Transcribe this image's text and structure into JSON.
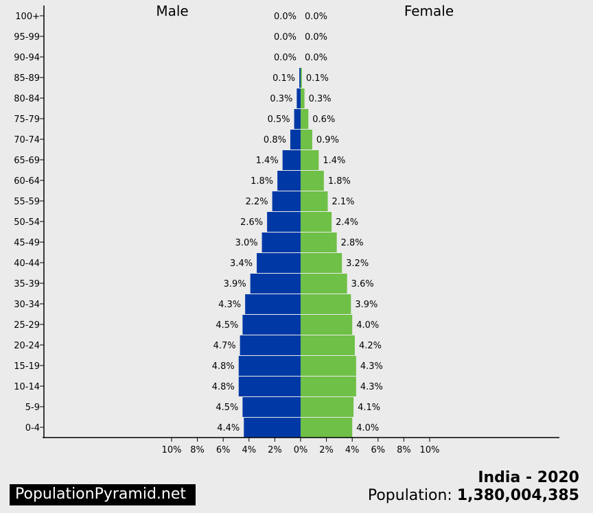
{
  "chart_data": {
    "type": "bar",
    "orientation": "horizontal-butterfly",
    "title_left": "Male",
    "title_right": "Female",
    "categories": [
      "100+",
      "95-99",
      "90-94",
      "85-89",
      "80-84",
      "75-79",
      "70-74",
      "65-69",
      "60-64",
      "55-59",
      "50-54",
      "45-49",
      "40-44",
      "35-39",
      "30-34",
      "25-29",
      "20-24",
      "15-19",
      "10-14",
      "5-9",
      "0-4"
    ],
    "series": [
      {
        "name": "Male",
        "color": "#0039a6",
        "values": [
          0.0,
          0.0,
          0.0,
          0.1,
          0.3,
          0.5,
          0.8,
          1.4,
          1.8,
          2.2,
          2.6,
          3.0,
          3.4,
          3.9,
          4.3,
          4.5,
          4.7,
          4.8,
          4.8,
          4.5,
          4.4
        ],
        "labels": [
          "0.0%",
          "0.0%",
          "0.0%",
          "0.1%",
          "0.3%",
          "0.5%",
          "0.8%",
          "1.4%",
          "1.8%",
          "2.2%",
          "2.6%",
          "3.0%",
          "3.4%",
          "3.9%",
          "4.3%",
          "4.5%",
          "4.7%",
          "4.8%",
          "4.8%",
          "4.5%",
          "4.4%"
        ]
      },
      {
        "name": "Female",
        "color": "#6ec046",
        "values": [
          0.0,
          0.0,
          0.0,
          0.1,
          0.3,
          0.6,
          0.9,
          1.4,
          1.8,
          2.1,
          2.4,
          2.8,
          3.2,
          3.6,
          3.9,
          4.0,
          4.2,
          4.3,
          4.3,
          4.1,
          4.0
        ],
        "labels": [
          "0.0%",
          "0.0%",
          "0.0%",
          "0.1%",
          "0.3%",
          "0.6%",
          "0.9%",
          "1.4%",
          "1.8%",
          "2.1%",
          "2.4%",
          "2.8%",
          "3.2%",
          "3.6%",
          "3.9%",
          "4.0%",
          "4.2%",
          "4.3%",
          "4.3%",
          "4.1%",
          "4.0%"
        ]
      }
    ],
    "xlim": [
      -10,
      10
    ],
    "xticks": [
      "10%",
      "8%",
      "6%",
      "4%",
      "2%",
      "0%",
      "2%",
      "4%",
      "6%",
      "8%",
      "10%"
    ],
    "grid": false
  },
  "footer": {
    "brand": "PopulationPyramid.net",
    "country_year": "India - 2020",
    "population_label": "Population:",
    "population_value": "1,380,004,385"
  }
}
